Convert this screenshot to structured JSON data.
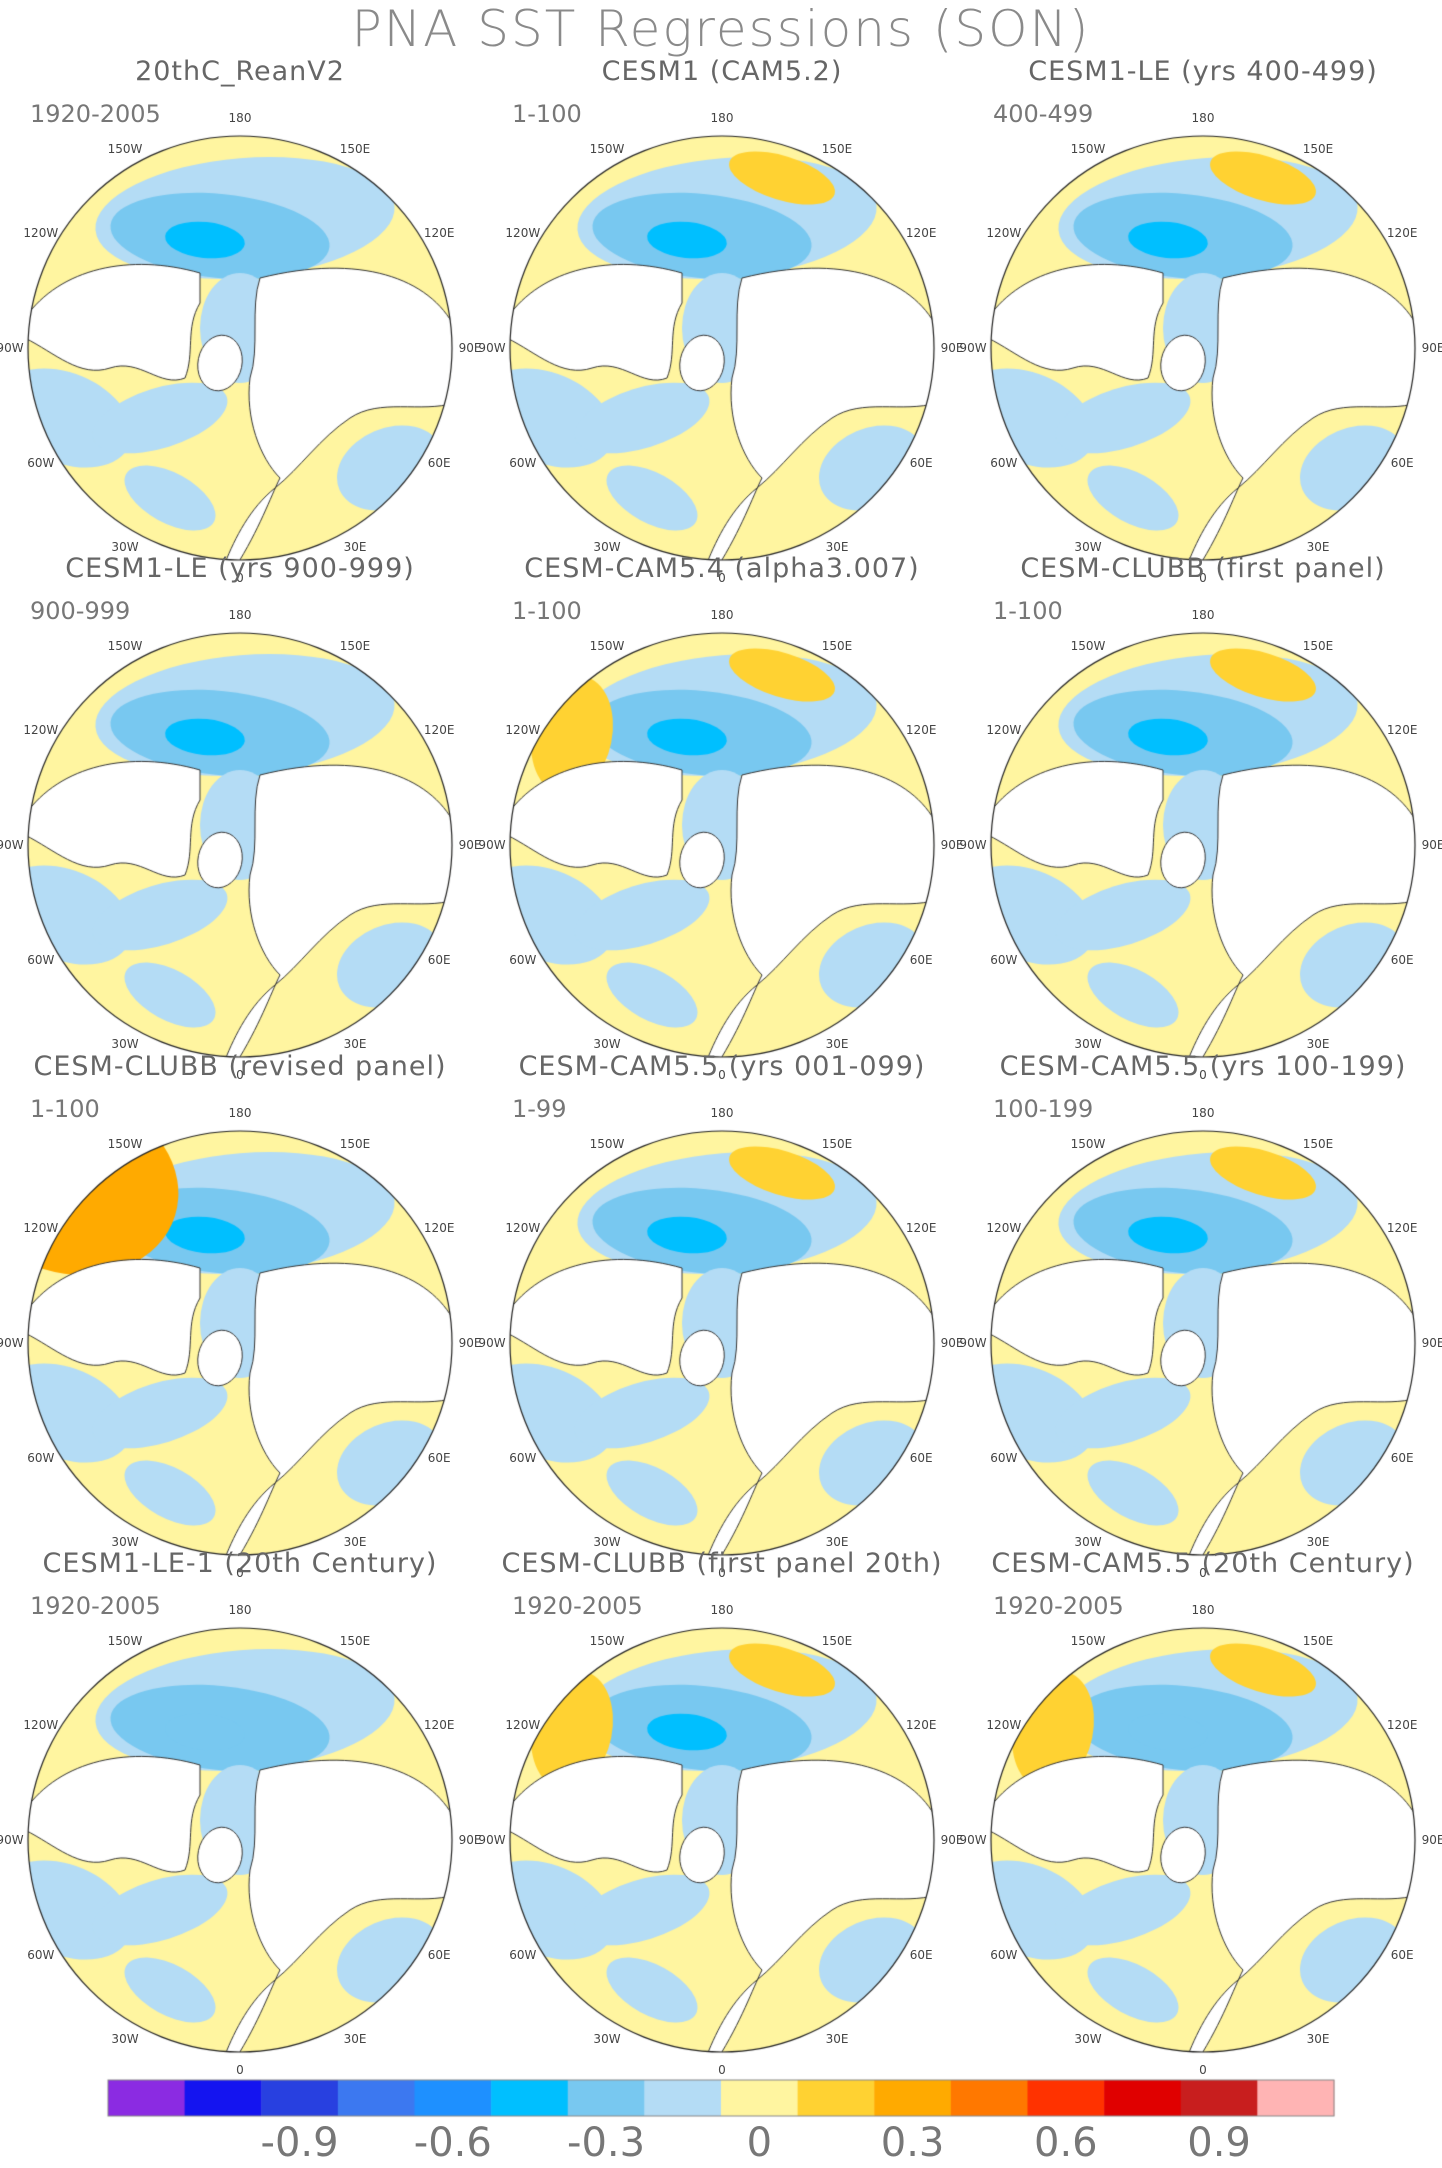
{
  "title": "PNA SST Regressions (SON)",
  "longitude_labels": [
    "180",
    "150E",
    "120E",
    "90E",
    "60E",
    "30E",
    "0",
    "30W",
    "60W",
    "90W",
    "120W",
    "150W"
  ],
  "panels": [
    {
      "title": "20thC_ReanV2",
      "years": "1920-2005",
      "blob_level": "blue"
    },
    {
      "title": "CESM1 (CAM5.2)",
      "years": "1-100",
      "blob_level": "blue"
    },
    {
      "title": "CESM1-LE (yrs 400-499)",
      "years": "400-499",
      "blob_level": "blue"
    },
    {
      "title": "CESM1-LE (yrs 900-999)",
      "years": "900-999",
      "blob_level": "blue"
    },
    {
      "title": "CESM-CAM5.4 (alpha3.007)",
      "years": "1-100",
      "blob_level": "blue"
    },
    {
      "title": "CESM-CLUBB (first panel)",
      "years": "1-100",
      "blob_level": "blue"
    },
    {
      "title": "CESM-CLUBB (revised panel)",
      "years": "1-100",
      "blob_level": "blue"
    },
    {
      "title": "CESM-CAM5.5 (yrs 001-099)",
      "years": "1-99",
      "blob_level": "blue"
    },
    {
      "title": "CESM-CAM5.5 (yrs 100-199)",
      "years": "100-199",
      "blob_level": "blue"
    },
    {
      "title": "CESM1-LE-1 (20th Century)",
      "years": "1920-2005",
      "blob_level": "lightblue"
    },
    {
      "title": "CESM-CLUBB (first panel 20th)",
      "years": "1920-2005",
      "blob_level": "blue"
    },
    {
      "title": "CESM-CAM5.5 (20th Century)",
      "years": "1920-2005",
      "blob_level": "lightblue"
    }
  ],
  "colorbar": {
    "colors": [
      "#8b2be2",
      "#1414f0",
      "#2840e0",
      "#3c78f0",
      "#1e90ff",
      "#00bfff",
      "#78c8f0",
      "#b4dcf5",
      "#fff5a0",
      "#ffd232",
      "#ffaa00",
      "#ff7800",
      "#ff3200",
      "#e00000",
      "#c81e1e",
      "#ffb4b4"
    ],
    "labels": [
      "-0.9",
      "-0.6",
      "-0.3",
      "0",
      "0.3",
      "0.6",
      "0.9"
    ]
  },
  "palette": {
    "ocean_pos": "#fff5a0",
    "ocean_neg": "#b4dcf5",
    "pos_mid": "#ffd232",
    "pos_strong": "#ffaa00",
    "neg_mid": "#78c8f0",
    "neg_strong": "#00bfff",
    "land": "#ffffff",
    "coast": "#333333"
  }
}
